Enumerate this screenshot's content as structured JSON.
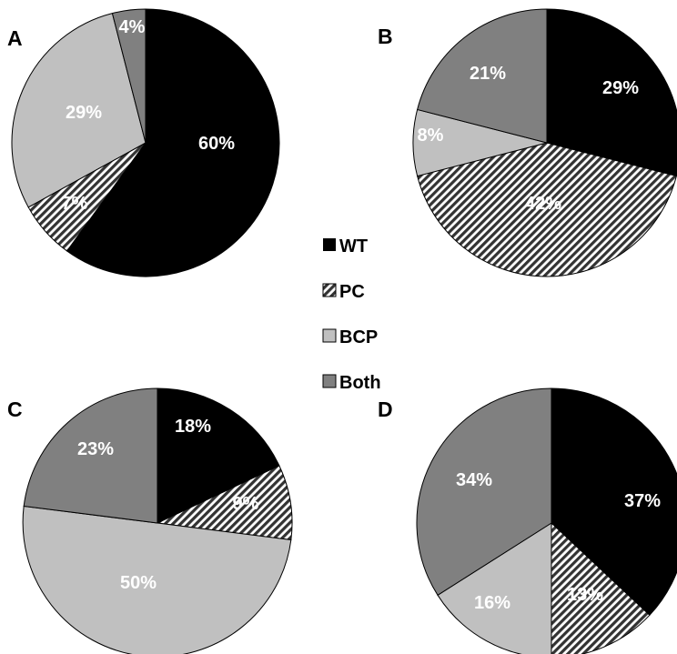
{
  "chart_data": [
    {
      "type": "pie",
      "panel": "A",
      "categories": [
        "WT",
        "PC",
        "BCP",
        "Both"
      ],
      "values": [
        60,
        7,
        29,
        4
      ],
      "labels": [
        "60%",
        "7%",
        "29%",
        "4%"
      ]
    },
    {
      "type": "pie",
      "panel": "B",
      "categories": [
        "WT",
        "PC",
        "BCP",
        "Both"
      ],
      "values": [
        29,
        42,
        8,
        21
      ],
      "labels": [
        "29%",
        "42%",
        "8%",
        "21%"
      ]
    },
    {
      "type": "pie",
      "panel": "C",
      "categories": [
        "WT",
        "PC",
        "BCP",
        "Both"
      ],
      "values": [
        18,
        9,
        50,
        23
      ],
      "labels": [
        "18%",
        "9%",
        "50%",
        "23%"
      ]
    },
    {
      "type": "pie",
      "panel": "D",
      "categories": [
        "WT",
        "PC",
        "BCP",
        "Both"
      ],
      "values": [
        37,
        13,
        16,
        34
      ],
      "labels": [
        "37%",
        "13%",
        "16%",
        "34%"
      ]
    }
  ],
  "legend": [
    {
      "name": "WT",
      "fill": "#000000"
    },
    {
      "name": "PC",
      "fill": "hatch"
    },
    {
      "name": "BCP",
      "fill": "#c0c0c0"
    },
    {
      "name": "Both",
      "fill": "#808080"
    }
  ],
  "colors": {
    "WT": "#000000",
    "PC_background": "#ffffff",
    "PC_hatch": "#333333",
    "BCP": "#c0c0c0",
    "Both": "#808080"
  }
}
